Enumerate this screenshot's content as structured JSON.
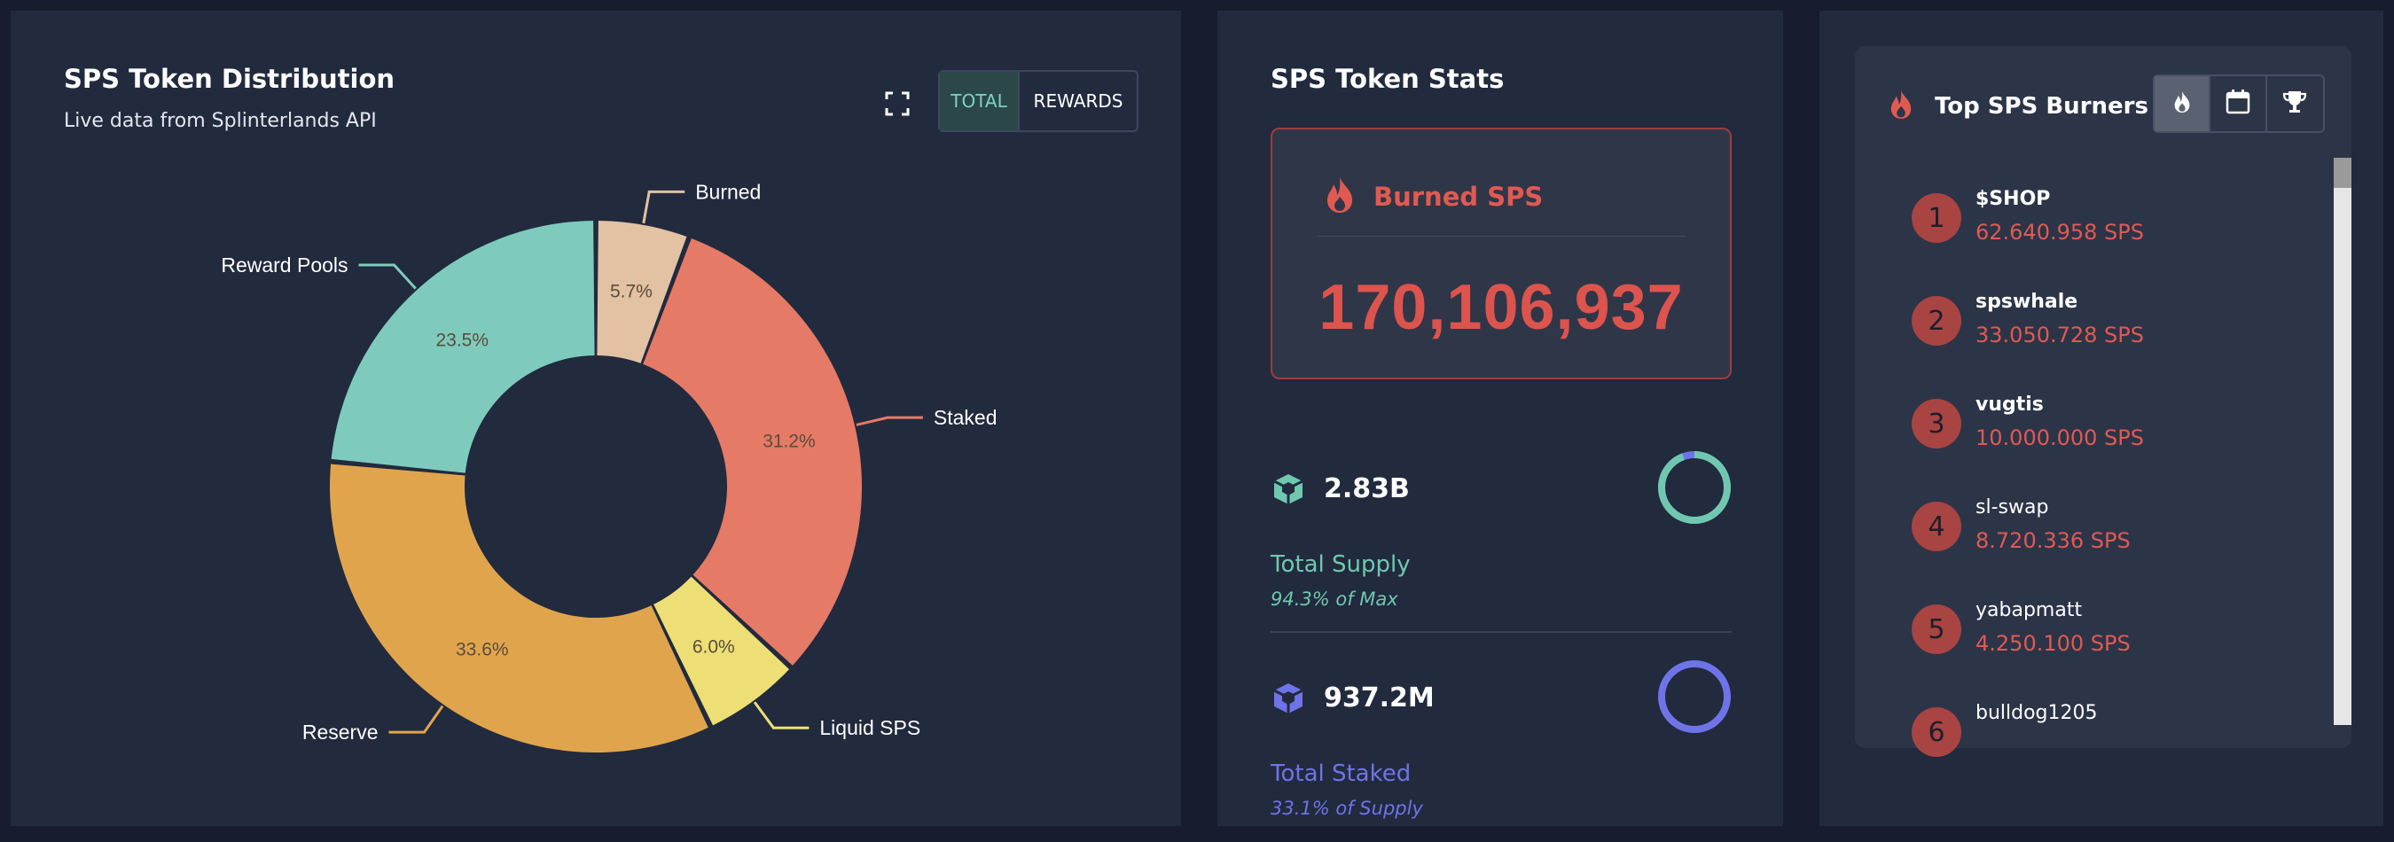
{
  "distribution": {
    "title": "SPS Token Distribution",
    "subtitle": "Live data from Splinterlands API",
    "toggle": {
      "total_label": "TOTAL",
      "rewards_label": "REWARDS",
      "active": "TOTAL"
    },
    "icons": {
      "expand": "expand-icon"
    }
  },
  "chart_data": {
    "type": "pie",
    "donut": true,
    "categories": [
      "Burned",
      "Staked",
      "Liquid SPS",
      "Reserve",
      "Reward Pools"
    ],
    "values": [
      5.7,
      31.2,
      6.0,
      33.6,
      23.5
    ],
    "labels": [
      "5.7%",
      "31.2%",
      "6.0%",
      "33.6%",
      "23.5%"
    ],
    "colors": [
      "#e2c2a2",
      "#e57a66",
      "#eddf75",
      "#e0a54c",
      "#7ecbbd"
    ],
    "title": "",
    "legend": "callouts"
  },
  "stats": {
    "title": "SPS Token Stats",
    "burned": {
      "label": "Burned SPS",
      "value": "170,106,937",
      "icon": "flame-icon"
    },
    "supply": {
      "value": "2.83B",
      "label": "Total Supply",
      "sub": "94.3% of Max",
      "percent": 94.3,
      "color": "#6fc8ae",
      "icon": "cube-icon"
    },
    "staked": {
      "value": "937.2M",
      "label": "Total Staked",
      "sub": "33.1% of Supply",
      "percent": 33.1,
      "color": "#6e74e8",
      "icon": "cube-icon"
    }
  },
  "burners": {
    "title": "Top SPS Burners",
    "tabs": [
      "flame-icon",
      "calendar-icon",
      "trophy-icon"
    ],
    "active_tab": "flame-icon",
    "items": [
      {
        "rank": "1",
        "name": "$SHOP",
        "amount": "62.640.958 SPS",
        "bold": true
      },
      {
        "rank": "2",
        "name": "spswhale",
        "amount": "33.050.728 SPS",
        "bold": true
      },
      {
        "rank": "3",
        "name": "vugtis",
        "amount": "10.000.000 SPS",
        "bold": true
      },
      {
        "rank": "4",
        "name": "sl-swap",
        "amount": "8.720.336 SPS",
        "bold": false
      },
      {
        "rank": "5",
        "name": "yabapmatt",
        "amount": "4.250.100 SPS",
        "bold": false
      },
      {
        "rank": "6",
        "name": "bulldog1205",
        "amount": "",
        "bold": false
      }
    ]
  }
}
